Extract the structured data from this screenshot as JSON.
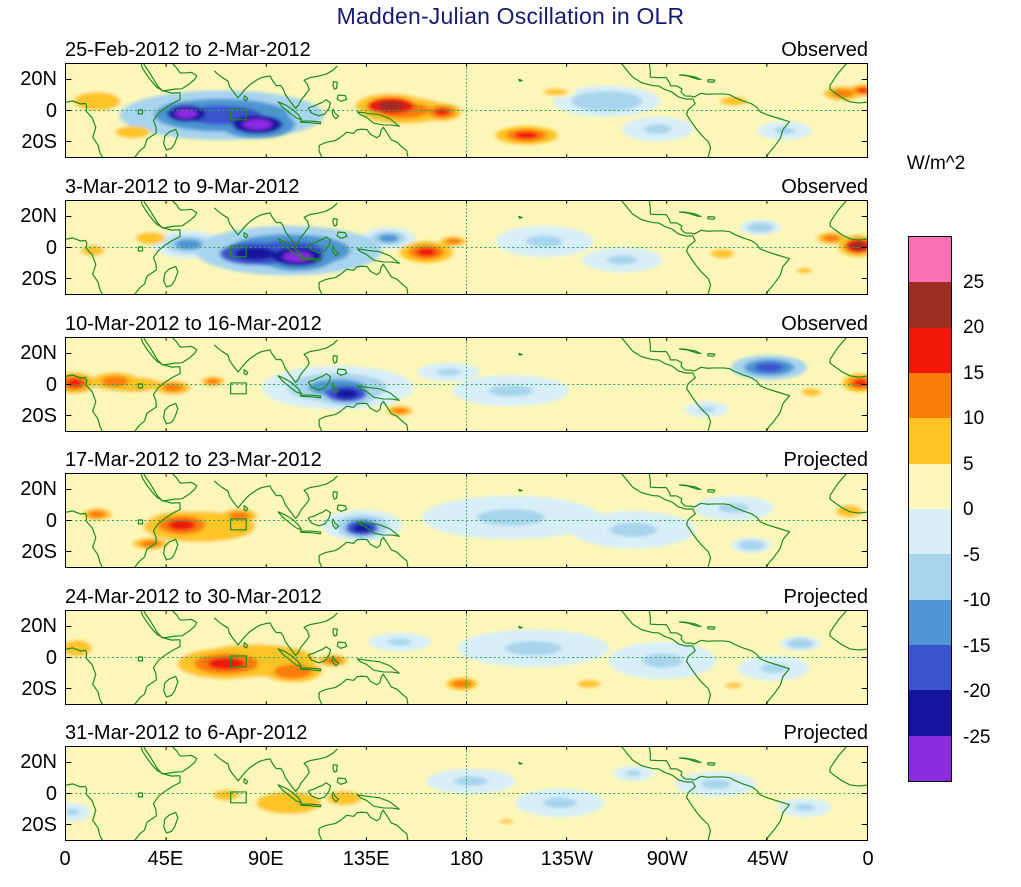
{
  "title": "Madden-Julian Oscillation in OLR",
  "colorbar": {
    "unit": "W/m^2",
    "tick_labels": [
      "25",
      "20",
      "15",
      "10",
      "5",
      "0",
      "-5",
      "-10",
      "-15",
      "-20",
      "-25"
    ]
  },
  "chart_data": {
    "type": "heatmap",
    "title": "Madden-Julian Oscillation in OLR",
    "units": "W/m^2",
    "description": "Six latitude-band (30S-30N) world maps of OLR anomalies for the Madden-Julian Oscillation; first three panels observed, last three projected.",
    "lon_range_deg": [
      0,
      360
    ],
    "lat_range_deg": [
      -30,
      30
    ],
    "lon_tick_labels": [
      "0",
      "45E",
      "90E",
      "135E",
      "180",
      "135W",
      "90W",
      "45W",
      "0"
    ],
    "lat_tick_labels": [
      "20N",
      "0",
      "20S"
    ],
    "contour_levels": [
      -25,
      -20,
      -15,
      -10,
      -5,
      0,
      5,
      10,
      15,
      20,
      25
    ],
    "palette_low_to_high": [
      "#8A2BE2",
      "#14149E",
      "#3A53CF",
      "#4E96D3",
      "#A8D4EE",
      "#D8EFF8",
      "#FCF7B9",
      "#FFC425",
      "#FA7D09",
      "#F21707",
      "#9B2D21",
      "#FB71B8"
    ],
    "coastline_color": "#208B20",
    "dashed_line_color": "#2FA360",
    "region_marker_box": {
      "lon_min": 74,
      "lon_max": 81,
      "lat_min": -6,
      "lat_max": 1
    },
    "anomaly_format": [
      "lon_deg",
      "lat_deg",
      "rx_deg",
      "ry_deg",
      "peak_w_m2"
    ],
    "panels": [
      {
        "label": "25-Feb-2012 to 2-Mar-2012",
        "status": "Observed",
        "anomalies": [
          [
            70,
            -3,
            46,
            16,
            -16
          ],
          [
            54,
            -2,
            13,
            8,
            -33
          ],
          [
            86,
            -9,
            17,
            9,
            -33
          ],
          [
            152,
            0,
            30,
            13,
            12
          ],
          [
            146,
            3,
            16,
            8,
            24
          ],
          [
            169,
            -1,
            9,
            6,
            18
          ],
          [
            14,
            6,
            16,
            9,
            9
          ],
          [
            30,
            -14,
            12,
            6,
            8
          ],
          [
            207,
            -16,
            14,
            6,
            16
          ],
          [
            220,
            12,
            14,
            6,
            7
          ],
          [
            243,
            6,
            24,
            10,
            -8
          ],
          [
            266,
            -12,
            16,
            8,
            -7
          ],
          [
            300,
            6,
            16,
            8,
            6
          ],
          [
            323,
            -13,
            12,
            6,
            -7
          ],
          [
            349,
            11,
            13,
            7,
            13
          ],
          [
            358,
            13,
            6,
            4,
            18
          ]
        ]
      },
      {
        "label": "3-Mar-2012 to 9-Mar-2012",
        "status": "Observed",
        "anomalies": [
          [
            100,
            -2,
            42,
            16,
            -15
          ],
          [
            85,
            -4,
            24,
            11,
            -22
          ],
          [
            104,
            -6,
            17,
            9,
            -33
          ],
          [
            55,
            2,
            16,
            9,
            -10
          ],
          [
            145,
            6,
            12,
            7,
            -14
          ],
          [
            162,
            -3,
            12,
            7,
            16
          ],
          [
            174,
            4,
            9,
            5,
            12
          ],
          [
            38,
            6,
            10,
            6,
            8
          ],
          [
            12,
            -2,
            14,
            9,
            6
          ],
          [
            215,
            4,
            22,
            10,
            -7
          ],
          [
            250,
            -8,
            18,
            8,
            -6
          ],
          [
            295,
            -4,
            14,
            8,
            6
          ],
          [
            312,
            13,
            9,
            5,
            -9
          ],
          [
            344,
            6,
            10,
            6,
            12
          ],
          [
            356,
            1,
            9,
            7,
            22
          ],
          [
            332,
            -15,
            9,
            5,
            7
          ]
        ]
      },
      {
        "label": "10-Mar-2012 to 16-Mar-2012",
        "status": "Observed",
        "anomalies": [
          [
            122,
            -2,
            34,
            14,
            -14
          ],
          [
            126,
            -6,
            14,
            8,
            -23
          ],
          [
            30,
            0,
            34,
            13,
            7
          ],
          [
            22,
            2,
            16,
            9,
            14
          ],
          [
            4,
            1,
            9,
            7,
            20
          ],
          [
            48,
            -2,
            12,
            7,
            12
          ],
          [
            66,
            2,
            8,
            5,
            11
          ],
          [
            150,
            -17,
            9,
            5,
            11
          ],
          [
            316,
            11,
            17,
            8,
            -15
          ],
          [
            200,
            -4,
            26,
            10,
            -6
          ],
          [
            172,
            8,
            14,
            6,
            -6
          ],
          [
            357,
            1,
            8,
            6,
            17
          ],
          [
            335,
            -5,
            12,
            7,
            6
          ],
          [
            288,
            -16,
            10,
            5,
            -6
          ]
        ]
      },
      {
        "label": "17-Mar-2012 to 23-Mar-2012",
        "status": "Projected",
        "anomalies": [
          [
            60,
            -4,
            38,
            15,
            9
          ],
          [
            52,
            -3,
            16,
            9,
            16
          ],
          [
            78,
            3,
            12,
            7,
            14
          ],
          [
            38,
            -15,
            12,
            6,
            13
          ],
          [
            14,
            4,
            10,
            6,
            11
          ],
          [
            133,
            -3,
            18,
            10,
            -14
          ],
          [
            133,
            -5,
            11,
            7,
            -24
          ],
          [
            200,
            2,
            40,
            14,
            -7
          ],
          [
            255,
            -6,
            28,
            12,
            -5
          ],
          [
            300,
            8,
            18,
            8,
            -5
          ],
          [
            308,
            -16,
            9,
            5,
            -9
          ],
          [
            352,
            6,
            9,
            6,
            8
          ],
          [
            330,
            0,
            12,
            7,
            5
          ]
        ]
      },
      {
        "label": "24-Mar-2012 to 30-Mar-2012",
        "status": "Projected",
        "anomalies": [
          [
            85,
            -2,
            42,
            16,
            9
          ],
          [
            72,
            -4,
            22,
            10,
            17
          ],
          [
            102,
            -9,
            13,
            7,
            15
          ],
          [
            120,
            -2,
            10,
            6,
            12
          ],
          [
            5,
            6,
            10,
            8,
            8
          ],
          [
            178,
            -17,
            7,
            4,
            15
          ],
          [
            235,
            -17,
            8,
            4,
            9
          ],
          [
            150,
            10,
            14,
            6,
            -6
          ],
          [
            210,
            6,
            34,
            12,
            -6
          ],
          [
            268,
            -2,
            24,
            12,
            -5
          ],
          [
            330,
            9,
            9,
            5,
            -9
          ],
          [
            318,
            -7,
            16,
            8,
            -5
          ],
          [
            300,
            -18,
            10,
            5,
            6
          ]
        ]
      },
      {
        "label": "31-Mar-2012 to 6-Apr-2012",
        "status": "Projected",
        "anomalies": [
          [
            100,
            -6,
            22,
            11,
            10
          ],
          [
            72,
            -1,
            16,
            9,
            7
          ],
          [
            125,
            -3,
            12,
            7,
            8
          ],
          [
            182,
            8,
            20,
            8,
            -6
          ],
          [
            222,
            -6,
            20,
            9,
            -5
          ],
          [
            292,
            6,
            18,
            8,
            -5
          ],
          [
            255,
            13,
            9,
            5,
            -7
          ],
          [
            332,
            -9,
            12,
            6,
            -5
          ],
          [
            3,
            -12,
            8,
            6,
            -5
          ],
          [
            198,
            -18,
            8,
            4,
            6
          ]
        ]
      }
    ]
  }
}
